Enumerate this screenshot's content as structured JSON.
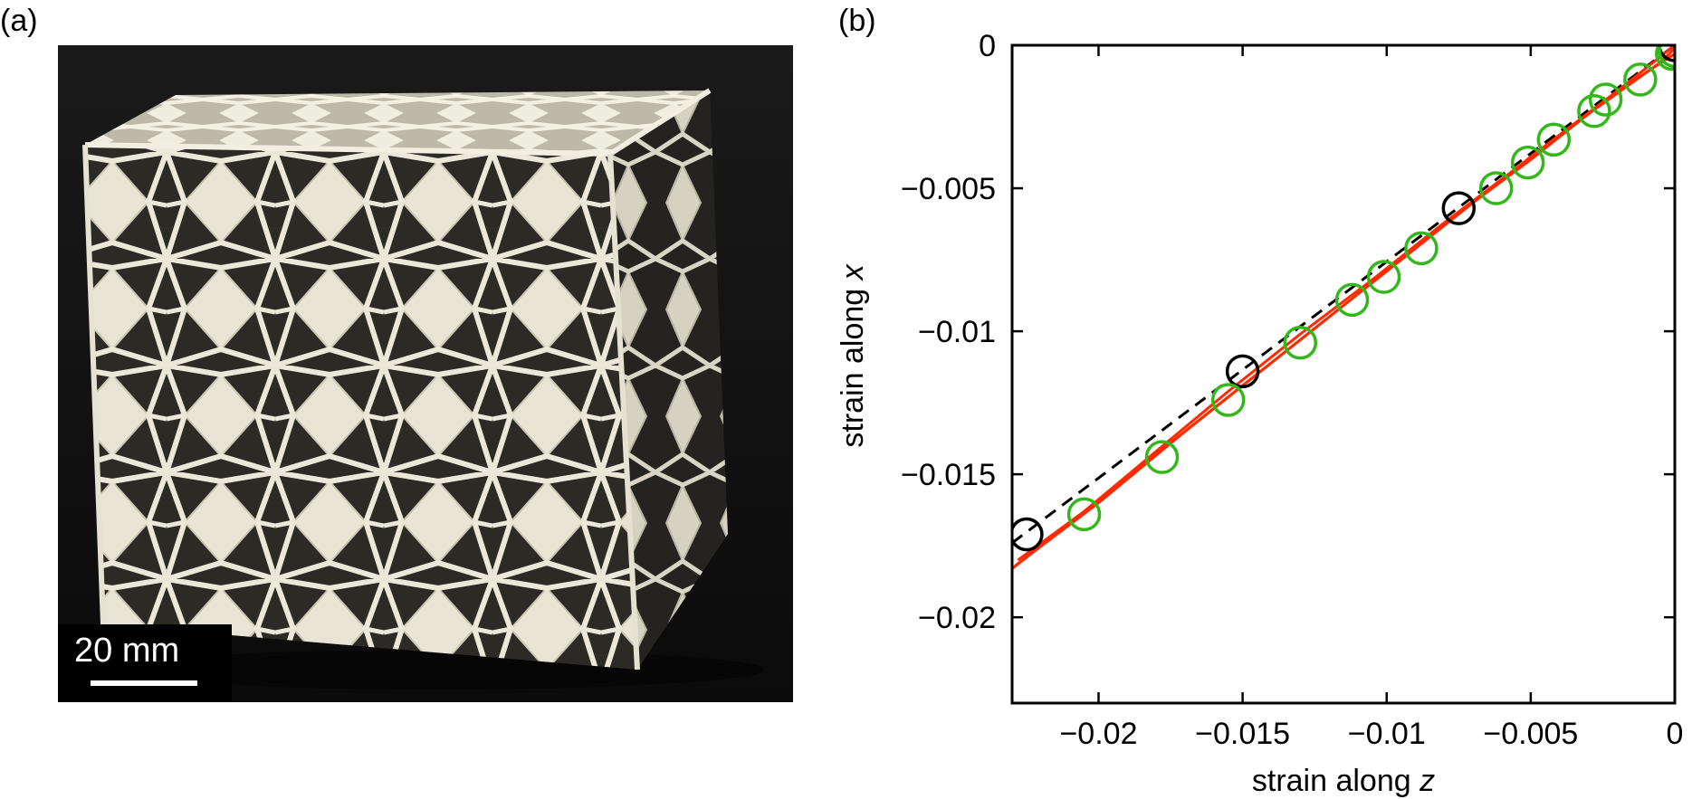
{
  "panel_a": {
    "label": "(a)",
    "scale_bar_text": "20 mm"
  },
  "panel_b": {
    "label": "(b)"
  },
  "colors": {
    "red_curve": "#ff2a00",
    "green_markers": "#33b81c",
    "black_markers": "#000000",
    "dashed_line": "#000000"
  },
  "chart_data": {
    "type": "line",
    "xlabel": "strain along z",
    "ylabel": "strain along x",
    "xlim": [
      -0.023,
      0
    ],
    "ylim": [
      -0.023,
      0
    ],
    "xticks": [
      -0.02,
      -0.015,
      -0.01,
      -0.005,
      0
    ],
    "xtick_labels": [
      "−0.02",
      "−0.015",
      "−0.01",
      "−0.005",
      "0"
    ],
    "yticks": [
      0,
      -0.005,
      -0.01,
      -0.015,
      -0.02
    ],
    "ytick_labels": [
      "0",
      "−0.005",
      "−0.01",
      "−0.015",
      "−0.02"
    ],
    "grid": false,
    "series": [
      {
        "style": "dashed",
        "color": "#000000",
        "x": [
          -0.023,
          0
        ],
        "y": [
          -0.0174,
          0
        ]
      },
      {
        "style": "circles",
        "color": "#000000",
        "x": [
          -0.0225,
          -0.015,
          -0.0075,
          0
        ],
        "y": [
          -0.0171,
          -0.0114,
          -0.0057,
          0
        ]
      },
      {
        "style": "circles",
        "color": "#33b81c",
        "x": [
          -0.0205,
          -0.0178,
          -0.0155,
          -0.013,
          -0.0112,
          -0.0101,
          -0.0088,
          -0.0062,
          -0.0051,
          -0.0042,
          -0.0028,
          -0.0024,
          -0.0012,
          -0.0001,
          0
        ],
        "y": [
          -0.0164,
          -0.0144,
          -0.0124,
          -0.0104,
          -0.0089,
          -0.0081,
          -0.0071,
          -0.005,
          -0.0041,
          -0.0033,
          -0.0023,
          -0.0019,
          -0.0012,
          -0.0003,
          -0.0002
        ]
      },
      {
        "style": "line",
        "color": "#ff2a00",
        "x": [
          -0.023,
          -0.021,
          -0.019,
          -0.017,
          -0.015,
          -0.013,
          -0.011,
          -0.009,
          -0.007,
          -0.005,
          -0.003,
          -0.001,
          0
        ],
        "y": [
          -0.0183,
          -0.0167,
          -0.0151,
          -0.0135,
          -0.0119,
          -0.0103,
          -0.0087,
          -0.0071,
          -0.0055,
          -0.004,
          -0.0024,
          -0.0008,
          0
        ]
      },
      {
        "style": "line",
        "color": "#ff2a00",
        "x": [
          -0.0228,
          -0.0205,
          -0.018,
          -0.0155,
          -0.013,
          -0.0105,
          -0.008,
          -0.0055,
          -0.003,
          -0.0005,
          0
        ],
        "y": [
          -0.018,
          -0.0163,
          -0.0142,
          -0.0121,
          -0.0101,
          -0.0082,
          -0.0062,
          -0.0043,
          -0.0024,
          -0.0006,
          -0.0001
        ]
      },
      {
        "style": "line",
        "color": "#ff2a00",
        "x": [
          -0.0229,
          -0.02,
          -0.017,
          -0.014,
          -0.011,
          -0.008,
          -0.005,
          -0.002,
          0
        ],
        "y": [
          -0.0182,
          -0.016,
          -0.0135,
          -0.0111,
          -0.0087,
          -0.0063,
          -0.0039,
          -0.0016,
          -0.0003
        ]
      }
    ]
  }
}
